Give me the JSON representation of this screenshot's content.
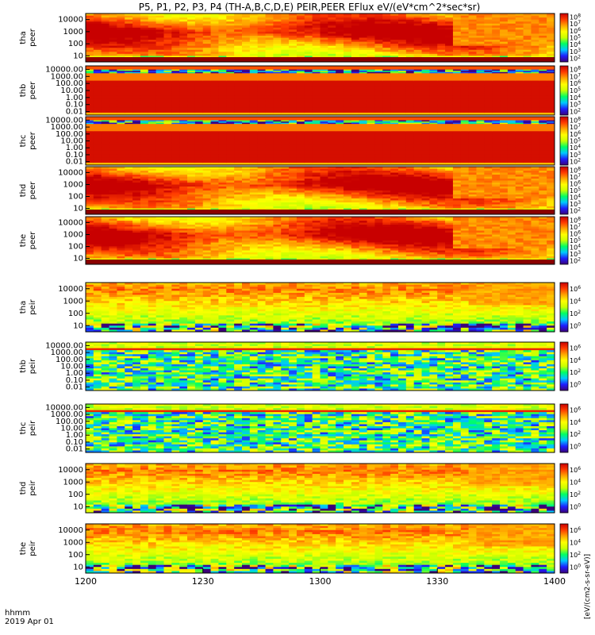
{
  "title": "P5, P1, P2, P3, P4 (TH-A,B,C,D,E) PEIR,PEER EFlux eV/(eV*cm^2*sec*sr)",
  "colorbar_unit_label": "[eV/(cm2-s-sr-eV)]",
  "time_axis": {
    "label_line1": "hhmm",
    "label_line2": "2019 Apr 01",
    "ticks": [
      "1200",
      "1230",
      "1300",
      "1330",
      "1400"
    ],
    "range": [
      "12:00",
      "14:00"
    ]
  },
  "colors": {
    "colormap": [
      "#3c0078",
      "#1e1eff",
      "#00c8ff",
      "#00ff64",
      "#c8ff00",
      "#ffff00",
      "#ffa500",
      "#ff3c00",
      "#c80000"
    ],
    "fill_line": "#8b0000"
  },
  "chart_data": [
    {
      "type": "heatmap",
      "probe": "tha",
      "species": "peer",
      "ylabel_top": "tha",
      "ylabel_bottom": "peer",
      "y_scale": "log",
      "y_ticks": [
        "10",
        "100",
        "1000",
        "10000"
      ],
      "colorbar_ticks": [
        "10^2",
        "10^3",
        "10^4",
        "10^5",
        "10^6",
        "10^7",
        "10^8"
      ],
      "pattern": "spectrogram",
      "has_bottom_line": true
    },
    {
      "type": "heatmap",
      "probe": "thb",
      "species": "peer",
      "ylabel_top": "thb",
      "ylabel_bottom": "peer",
      "y_scale": "log",
      "y_ticks": [
        "0.01",
        "0.10",
        "1.00",
        "10.00",
        "100.00",
        "1000.00",
        "10000.00"
      ],
      "colorbar_ticks": [
        "10^2",
        "10^3",
        "10^4",
        "10^5",
        "10^6",
        "10^7",
        "10^8"
      ],
      "pattern": "bands"
    },
    {
      "type": "heatmap",
      "probe": "thc",
      "species": "peer",
      "ylabel_top": "thc",
      "ylabel_bottom": "peer",
      "y_scale": "log",
      "y_ticks": [
        "0.01",
        "0.10",
        "1.00",
        "10.00",
        "100.00",
        "1000.00",
        "10000.00"
      ],
      "colorbar_ticks": [
        "10^2",
        "10^3",
        "10^4",
        "10^5",
        "10^6",
        "10^7",
        "10^8"
      ],
      "pattern": "bands"
    },
    {
      "type": "heatmap",
      "probe": "thd",
      "species": "peer",
      "ylabel_top": "thd",
      "ylabel_bottom": "peer",
      "y_scale": "log",
      "y_ticks": [
        "10",
        "100",
        "1000",
        "10000"
      ],
      "colorbar_ticks": [
        "10^2",
        "10^3",
        "10^4",
        "10^5",
        "10^6",
        "10^7",
        "10^8"
      ],
      "pattern": "spectrogram",
      "has_bottom_line": true
    },
    {
      "type": "heatmap",
      "probe": "the",
      "species": "peer",
      "ylabel_top": "the",
      "ylabel_bottom": "peer",
      "y_scale": "log",
      "y_ticks": [
        "10",
        "100",
        "1000",
        "10000"
      ],
      "colorbar_ticks": [
        "10^2",
        "10^3",
        "10^4",
        "10^5",
        "10^6",
        "10^7",
        "10^8"
      ],
      "pattern": "spectrogram",
      "has_bottom_line": true
    },
    {
      "type": "heatmap",
      "probe": "tha",
      "species": "peir",
      "ylabel_top": "tha",
      "ylabel_bottom": "peir",
      "y_scale": "log",
      "y_ticks": [
        "10",
        "100",
        "1000",
        "10000"
      ],
      "colorbar_ticks": [
        "10^0",
        "10^2",
        "10^4",
        "10^6"
      ],
      "pattern": "ion"
    },
    {
      "type": "heatmap",
      "probe": "thb",
      "species": "peir",
      "ylabel_top": "thb",
      "ylabel_bottom": "peir",
      "y_scale": "log",
      "y_ticks": [
        "0.01",
        "0.10",
        "1.00",
        "10.00",
        "100.00",
        "1000.00",
        "10000.00"
      ],
      "colorbar_ticks": [
        "10^0",
        "10^2",
        "10^4",
        "10^6"
      ],
      "pattern": "ion_noisy"
    },
    {
      "type": "heatmap",
      "probe": "thc",
      "species": "peir",
      "ylabel_top": "thc",
      "ylabel_bottom": "peir",
      "y_scale": "log",
      "y_ticks": [
        "0.01",
        "0.10",
        "1.00",
        "10.00",
        "100.00",
        "1000.00",
        "10000.00"
      ],
      "colorbar_ticks": [
        "10^0",
        "10^2",
        "10^4",
        "10^6"
      ],
      "pattern": "ion_noisy"
    },
    {
      "type": "heatmap",
      "probe": "thd",
      "species": "peir",
      "ylabel_top": "thd",
      "ylabel_bottom": "peir",
      "y_scale": "log",
      "y_ticks": [
        "10",
        "100",
        "1000",
        "10000"
      ],
      "colorbar_ticks": [
        "10^0",
        "10^2",
        "10^4",
        "10^6"
      ],
      "pattern": "ion"
    },
    {
      "type": "heatmap",
      "probe": "the",
      "species": "peir",
      "ylabel_top": "the",
      "ylabel_bottom": "peir",
      "y_scale": "log",
      "y_ticks": [
        "10",
        "100",
        "1000",
        "10000"
      ],
      "colorbar_ticks": [
        "10^0",
        "10^2",
        "10^4",
        "10^6"
      ],
      "pattern": "ion"
    }
  ]
}
